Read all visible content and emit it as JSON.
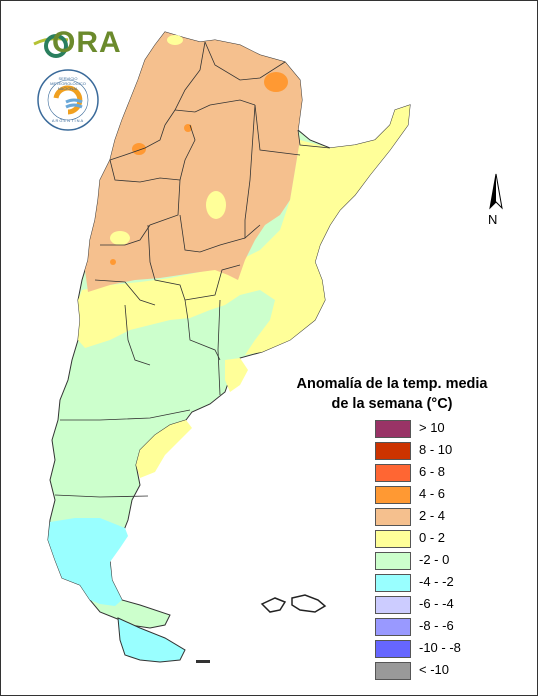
{
  "logos": {
    "ora_text": "ORA",
    "smn_caption": "SERVICIO METEOROLÓGICO NACIONAL",
    "smn_country": "ARGENTINA"
  },
  "north_arrow": {
    "label": "N"
  },
  "legend": {
    "title_line1": "Anomalía de la temp. media",
    "title_line2": "de la semana (°C)",
    "items": [
      {
        "label": "> 10",
        "color": "#993366"
      },
      {
        "label": "8 - 10",
        "color": "#cc3300"
      },
      {
        "label": "6 - 8",
        "color": "#ff6633"
      },
      {
        "label": "4 - 6",
        "color": "#ff9933"
      },
      {
        "label": "2 - 4",
        "color": "#f5c08e"
      },
      {
        "label": "0 - 2",
        "color": "#ffff99"
      },
      {
        "label": "-2 - 0",
        "color": "#ccffcc"
      },
      {
        "label": "-4 - -2",
        "color": "#99ffff"
      },
      {
        "label": "-6 - -4",
        "color": "#ccccff"
      },
      {
        "label": "-8 - -6",
        "color": "#9999ff"
      },
      {
        "label": "-10 - -8",
        "color": "#6666ff"
      },
      {
        "label": "< -10",
        "color": "#999999"
      }
    ]
  }
}
